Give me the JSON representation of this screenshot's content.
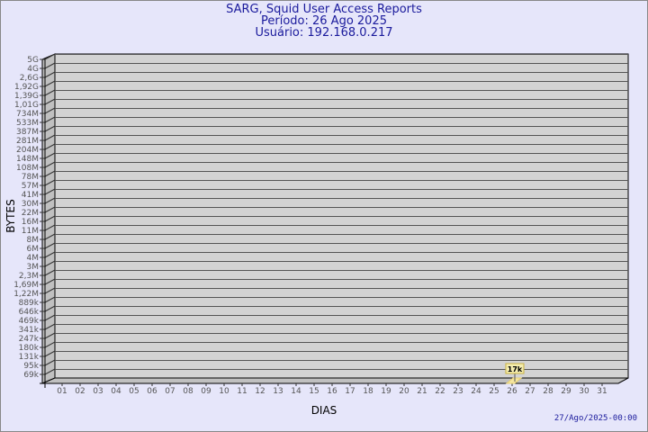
{
  "title": "SARG, Squid User Access Reports",
  "period": "Período: 26 Ago 2025",
  "user": "Usuário: 192.168.0.217",
  "timestamp": "27/Ago/2025-00:00",
  "colors": {
    "background": "#e6e6fa",
    "title": "#1a1a9c",
    "bar": "#f5e6a0",
    "plot": "#d3d3d3"
  },
  "chart_data": {
    "type": "bar",
    "xlabel": "DIAS",
    "ylabel": "BYTES",
    "y_scale": "log",
    "y_ticks": [
      "5G",
      "4G",
      "2,6G",
      "1,92G",
      "1,39G",
      "1,01G",
      "734M",
      "533M",
      "387M",
      "281M",
      "204M",
      "148M",
      "108M",
      "78M",
      "57M",
      "41M",
      "30M",
      "22M",
      "16M",
      "11M",
      "8M",
      "6M",
      "4M",
      "3M",
      "2,3M",
      "1,69M",
      "1,22M",
      "889k",
      "646k",
      "469k",
      "341k",
      "247k",
      "180k",
      "131k",
      "95k",
      "69k"
    ],
    "categories": [
      "01",
      "02",
      "03",
      "04",
      "05",
      "06",
      "07",
      "08",
      "09",
      "10",
      "11",
      "12",
      "13",
      "14",
      "15",
      "16",
      "17",
      "18",
      "19",
      "20",
      "21",
      "22",
      "23",
      "24",
      "25",
      "26",
      "27",
      "28",
      "29",
      "30",
      "31"
    ],
    "values": [
      0,
      0,
      0,
      0,
      0,
      0,
      0,
      0,
      0,
      0,
      0,
      0,
      0,
      0,
      0,
      0,
      0,
      0,
      0,
      0,
      0,
      0,
      0,
      0,
      0,
      17000,
      0,
      0,
      0,
      0,
      0
    ],
    "data_labels": [
      {
        "category": "26",
        "label": "17k"
      }
    ],
    "grid": true
  }
}
